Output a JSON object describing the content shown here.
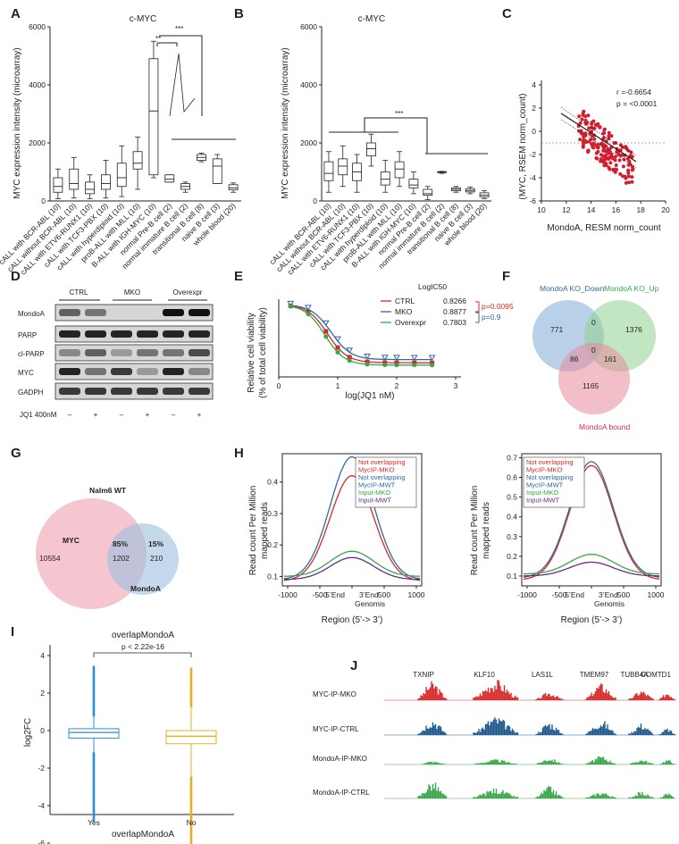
{
  "panel_labels": [
    "A",
    "B",
    "C",
    "D",
    "E",
    "F",
    "G",
    "H",
    "I",
    "J"
  ],
  "panelA": {
    "title": "c-MYC",
    "ylabel": "MYC expression intensity (microarray)",
    "yticks": [
      "0",
      "2000",
      "4000",
      "6000"
    ],
    "sig": [
      "**",
      "***"
    ],
    "categories": [
      "cALL with BCR-ABL (10)",
      "cALL without BCR-ABL (10)",
      "cALL with ETV6-RUNX1 (10)",
      "cALL with TCF3-PBX (10)",
      "cALL with hyperdiploid (10)",
      "proB-ALL with MLL (10)",
      "B-ALL with IGH-MYC (10)",
      "normal Pre-B cell (2)",
      "normal immature B cell (2)",
      "transitional B cell (8)",
      "naive B cell (3)",
      "whole blood (20)"
    ]
  },
  "panelB": {
    "title": "c-MYC",
    "ylabel": "MYC expression intensity (microarray)",
    "yticks": [
      "0",
      "2000",
      "4000",
      "6000"
    ],
    "sig": [
      "***"
    ],
    "categories": [
      "cALL with BCR-ABL (10)",
      "cALL without BCR-ABL (10)",
      "cALL with ETV6-RUNX1 (10)",
      "cALL with TCF3-PBX (10)",
      "cALL with hyperdiploid (10)",
      "proB-ALL with MLL (10)",
      "B-ALL with IGH-MYC (10)",
      "normal Pre-B cell (2)",
      "normal immature B cell (2)",
      "transitional B cell (8)",
      "naive B cell (3)",
      "whole blood (20)"
    ]
  },
  "panelC": {
    "ylabel": "(MYC, RSEM norm_count)",
    "xlabel": "MondoA, RESM norm_count",
    "xticks": [
      "10",
      "12",
      "14",
      "16",
      "18",
      "20"
    ],
    "yticks": [
      "4",
      "2",
      "0",
      "-2",
      "-4",
      "-6"
    ],
    "r_text": "r =-0.6654",
    "p_text": "p = <0.0001"
  },
  "panelD": {
    "groups": [
      "CTRL",
      "MKO",
      "Overexpr"
    ],
    "rows": [
      "MondoA",
      "PARP",
      "cl-PARP",
      "MYC",
      "GADPH"
    ],
    "jq1_label": "JQ1 400nM",
    "signs": [
      "–",
      "+",
      "–",
      "+",
      "–",
      "+"
    ]
  },
  "panelE": {
    "ylabel1": "Relative cell viability",
    "ylabel2": "(% of total cell viability)",
    "xlabel": "log(JQ1 nM)",
    "legend_title": "LogIC50",
    "legend": [
      {
        "name": "CTRL",
        "value": "0.8266",
        "color": "#d62a2a"
      },
      {
        "name": "MKO",
        "value": "0.8877",
        "color": "#2e6aa8"
      },
      {
        "name": "Overexpr",
        "value": "0.7803",
        "color": "#3aa64a"
      }
    ],
    "p1": "p=0.0095",
    "p2": "p=0.9",
    "xticks": [
      "0",
      "1",
      "2",
      "3"
    ]
  },
  "panelF": {
    "labels": [
      "MondoA KO_Down",
      "MondoA KO_Up",
      "MondoA bound"
    ],
    "numbers": [
      "771",
      "0",
      "1376",
      "0",
      "86",
      "161",
      "1165"
    ]
  },
  "panelG": {
    "title": "Nalm6 WT",
    "set1": "MYC",
    "set2": "MondoA",
    "pct1": "85%",
    "pct2": "15%",
    "only1": "10554",
    "overlap": "1202",
    "only2": "210"
  },
  "panelH": {
    "ylabel1": "Read count Per Million",
    "ylabel2": "mapped reads",
    "xlabel": "Region (5’-> 3’)",
    "tss1": "5’End",
    "tss2": "3’End",
    "genomis": "Genomis",
    "xticks": [
      "-1000",
      "-500",
      "",
      "500",
      "1000"
    ],
    "left_yticks": [
      "0.1",
      "0.2",
      "0.3",
      "0.4"
    ],
    "right_yticks": [
      "0.1",
      "0.2",
      "0.3",
      "0.4",
      "0.5",
      "0.6",
      "0.7"
    ],
    "legend": [
      {
        "text": "Not overlapping",
        "color": "#d62a2a"
      },
      {
        "text": "MycIP-MKO",
        "color": "#d62a2a"
      },
      {
        "text": "Not overlapping",
        "color": "#2e6aa8"
      },
      {
        "text": "MycIP-MWT",
        "color": "#2e6aa8"
      },
      {
        "text": "Input-MKO",
        "color": "#3aa64a"
      },
      {
        "text": "Input-MWT",
        "color": "#6a2a8a"
      }
    ]
  },
  "panelI": {
    "title": "overlapMondoA",
    "pval": "p < 2.22e-16",
    "ylabel": "log2FC",
    "xlabel": "overlapMondoA",
    "categories": [
      "Yes",
      "No"
    ],
    "yticks": [
      "4",
      "2",
      "0",
      "-2",
      "-4",
      "-6"
    ],
    "colors": [
      "#2b8fd6",
      "#e6b020"
    ]
  },
  "panelJ": {
    "genes": [
      "TXNIP",
      "KLF10",
      "LAS1L",
      "TMEM97",
      "TUBB4A",
      "COMTD1"
    ],
    "tracks": [
      {
        "label": "MYC-IP-MKO",
        "color": "#d62a2a"
      },
      {
        "label": "MYC-IP-CTRL",
        "color": "#1f5a8c"
      },
      {
        "label": "MondoA-IP-MKO",
        "color": "#3aa64a"
      },
      {
        "label": "MondoA-IP-CTRL",
        "color": "#3aa64a"
      }
    ]
  }
}
